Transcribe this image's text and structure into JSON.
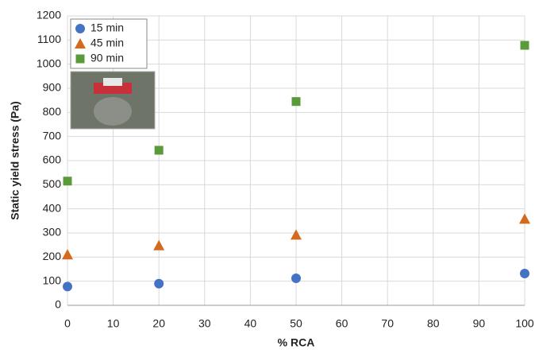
{
  "chart_data": {
    "type": "scatter",
    "x_label": "% RCA",
    "y_label": "Static yield stress (Pa)",
    "x": [
      0,
      20,
      50,
      100
    ],
    "series": [
      {
        "name": "15 min",
        "color": "#4472c4",
        "marker": "circle",
        "values": [
          78,
          90,
          112,
          132
        ]
      },
      {
        "name": "45 min",
        "color": "#d46a1c",
        "marker": "triangle",
        "values": [
          210,
          248,
          292,
          358
        ]
      },
      {
        "name": "90 min",
        "color": "#5a9a3a",
        "marker": "square",
        "values": [
          515,
          643,
          845,
          1078
        ]
      }
    ],
    "xlim": [
      0,
      100
    ],
    "xticks": [
      0,
      10,
      20,
      30,
      40,
      50,
      60,
      70,
      80,
      90,
      100
    ],
    "ylim": [
      0,
      1200
    ],
    "yticks": [
      0,
      100,
      200,
      300,
      400,
      500,
      600,
      700,
      800,
      900,
      1000,
      1100,
      1200
    ],
    "grid": true,
    "legend": "upper-left"
  }
}
